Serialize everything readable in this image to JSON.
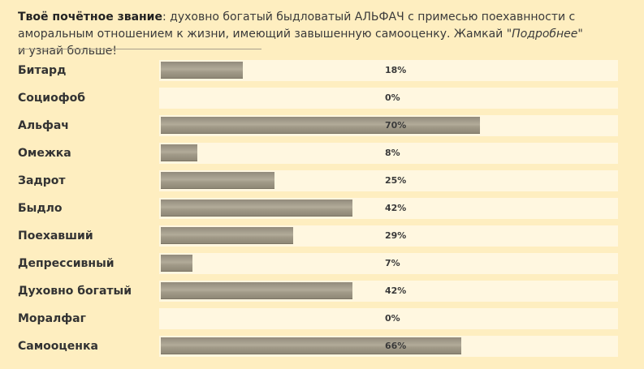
{
  "intro": {
    "title_label": "Твоё почётное звание",
    "colon": ": ",
    "text_before_link": "духовно богатый быдловатый АЛЬФАЧ с примесью поехавнности с аморальным отношением к жизни, имеющий завышенную самооценку. Жамкай \"",
    "link_text": "Подробнее",
    "text_after_link": "\" и узнай больше!"
  },
  "rows": [
    {
      "label": "Битард",
      "value": 18,
      "percent": "18%"
    },
    {
      "label": "Социофоб",
      "value": 0,
      "percent": "0%"
    },
    {
      "label": "Альфач",
      "value": 70,
      "percent": "70%"
    },
    {
      "label": "Омежка",
      "value": 8,
      "percent": "8%"
    },
    {
      "label": "Задрот",
      "value": 25,
      "percent": "25%"
    },
    {
      "label": "Быдло",
      "value": 42,
      "percent": "42%"
    },
    {
      "label": "Поехавший",
      "value": 29,
      "percent": "29%"
    },
    {
      "label": "Депрессивный",
      "value": 7,
      "percent": "7%"
    },
    {
      "label": "Духовно богатый",
      "value": 42,
      "percent": "42%"
    },
    {
      "label": "Моралфаг",
      "value": 0,
      "percent": "0%"
    },
    {
      "label": "Самооценка",
      "value": 66,
      "percent": "66%"
    }
  ],
  "colors": {
    "background": "#feeec0",
    "track": "#fff7e0",
    "fill": "#a39c8a",
    "text": "#333333"
  }
}
